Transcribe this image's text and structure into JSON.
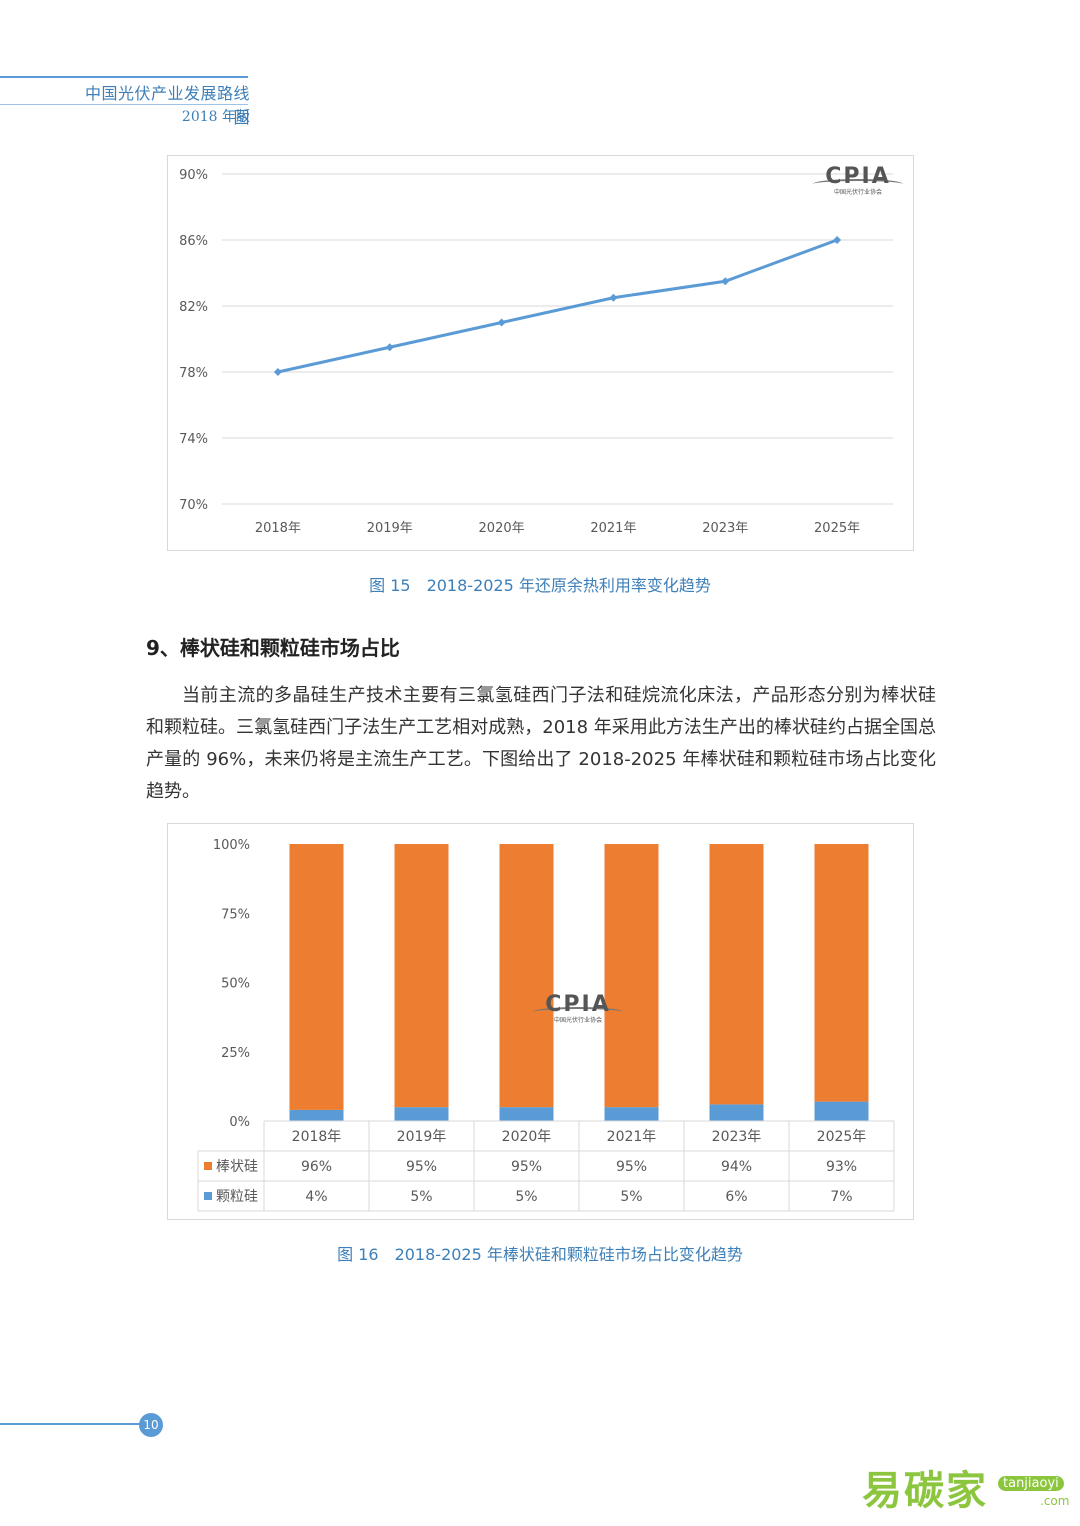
{
  "header": {
    "title": "中国光伏产业发展路线图",
    "edition": "2018 年版"
  },
  "figure15": {
    "caption": "图 15　2018-2025 年还原余热利用率变化趋势"
  },
  "figure16": {
    "caption": "图 16　2018-2025 年棒状硅和颗粒硅市场占比变化趋势"
  },
  "logo": {
    "text": "CPIA",
    "subtext": "中国光伏行业协会"
  },
  "section": {
    "title": "9、棒状硅和颗粒硅市场占比",
    "paragraph": "当前主流的多晶硅生产技术主要有三氯氢硅西门子法和硅烷流化床法，产品形态分别为棒状硅和颗粒硅。三氯氢硅西门子法生产工艺相对成熟，2018 年采用此方法生产出的棒状硅约占据全国总产量的 96%，未来仍将是主流生产工艺。下图给出了 2018-2025 年棒状硅和颗粒硅市场占比变化趋势。"
  },
  "footer": {
    "page_number": "10"
  },
  "watermark": {
    "brand": "易碳家",
    "domain": "tanjiaoyi",
    "tld": ".com"
  },
  "chart_data": [
    {
      "type": "line",
      "categories": [
        "2018年",
        "2019年",
        "2020年",
        "2021年",
        "2023年",
        "2025年"
      ],
      "series": [
        {
          "values": [
            78,
            79.5,
            81,
            82.5,
            83.5,
            86
          ],
          "color": "#5b9bd5"
        }
      ],
      "yticks": [
        "90%",
        "86%",
        "82%",
        "78%",
        "74%",
        "70%"
      ],
      "ylim": [
        70,
        90
      ],
      "grid": true
    },
    {
      "type": "bar",
      "stacked": true,
      "categories": [
        "2018年",
        "2019年",
        "2020年",
        "2021年",
        "2023年",
        "2025年"
      ],
      "series": [
        {
          "name": "颗粒硅",
          "values": [
            4,
            5,
            5,
            5,
            6,
            7
          ],
          "labels": [
            "4%",
            "5%",
            "5%",
            "5%",
            "6%",
            "7%"
          ],
          "color": "#5b9bd5"
        },
        {
          "name": "棒状硅",
          "values": [
            96,
            95,
            95,
            95,
            94,
            93
          ],
          "labels": [
            "96%",
            "95%",
            "95%",
            "95%",
            "94%",
            "93%"
          ],
          "color": "#ed7d31"
        }
      ],
      "yticks": [
        "100%",
        "75%",
        "50%",
        "25%",
        "0%"
      ],
      "ylim": [
        0,
        100
      ],
      "data_table": true
    }
  ]
}
